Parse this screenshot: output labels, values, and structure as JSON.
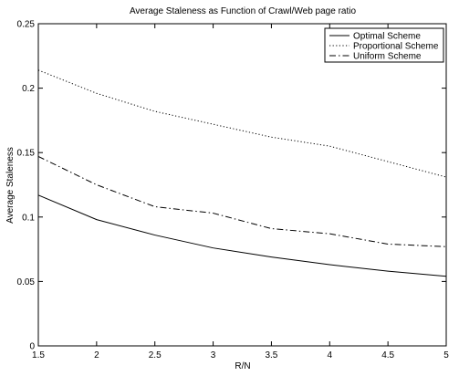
{
  "chart_data": {
    "type": "line",
    "title": "Average Staleness as Function of Crawl/Web page ratio",
    "xlabel": "R/N",
    "ylabel": "Average Staleness",
    "xlim": [
      1.5,
      5
    ],
    "ylim": [
      0,
      0.25
    ],
    "xticks": [
      "1.5",
      "2",
      "2.5",
      "3",
      "3.5",
      "4",
      "4.5",
      "5"
    ],
    "yticks": [
      "0",
      "0.05",
      "0.1",
      "0.15",
      "0.2",
      "0.25"
    ],
    "grid": false,
    "legend_position": "top-right",
    "x": [
      1.5,
      2,
      2.5,
      3,
      3.5,
      4,
      4.5,
      5
    ],
    "series": [
      {
        "name": "Optimal Scheme",
        "style": "solid",
        "values": [
          0.117,
          0.098,
          0.086,
          0.076,
          0.069,
          0.063,
          0.058,
          0.054
        ]
      },
      {
        "name": "Proportional Scheme",
        "style": "dotted",
        "values": [
          0.214,
          0.196,
          0.182,
          0.172,
          0.162,
          0.155,
          0.143,
          0.131
        ]
      },
      {
        "name": "Uniform Scheme",
        "style": "dashdot",
        "values": [
          0.147,
          0.125,
          0.108,
          0.103,
          0.091,
          0.087,
          0.079,
          0.077
        ]
      }
    ],
    "colors": {
      "line": "#000000",
      "background": "#ffffff"
    }
  }
}
